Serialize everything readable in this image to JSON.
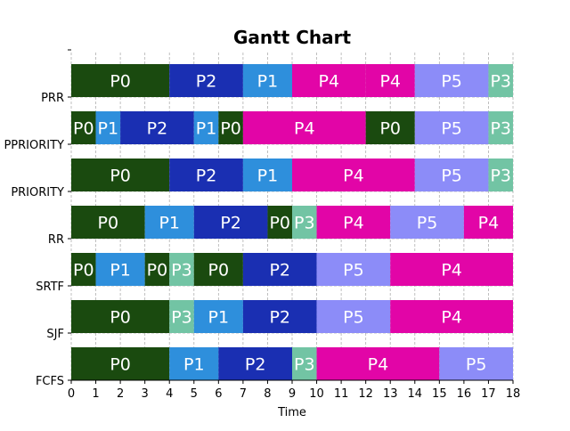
{
  "chart_data": {
    "type": "gantt",
    "title": "Gantt Chart",
    "xlabel": "Time",
    "ylabel": "",
    "xlim": [
      0,
      18
    ],
    "x_ticks": [
      0,
      1,
      2,
      3,
      4,
      5,
      6,
      7,
      8,
      9,
      10,
      11,
      12,
      13,
      14,
      15,
      16,
      17,
      18
    ],
    "grid": true,
    "colors": {
      "P0": "#1a4a0f",
      "P1": "#2e8fdc",
      "P2": "#1a2fb2",
      "P3": "#72c4a4",
      "P4": "#e205a7",
      "P5": "#8c8cf8"
    },
    "rows": [
      {
        "label": "FCFS",
        "segments": [
          {
            "process": "P0",
            "start": 0,
            "end": 4
          },
          {
            "process": "P1",
            "start": 4,
            "end": 6
          },
          {
            "process": "P2",
            "start": 6,
            "end": 9
          },
          {
            "process": "P3",
            "start": 9,
            "end": 10
          },
          {
            "process": "P4",
            "start": 10,
            "end": 15
          },
          {
            "process": "P5",
            "start": 15,
            "end": 18
          }
        ]
      },
      {
        "label": "SJF",
        "segments": [
          {
            "process": "P0",
            "start": 0,
            "end": 4
          },
          {
            "process": "P3",
            "start": 4,
            "end": 5
          },
          {
            "process": "P1",
            "start": 5,
            "end": 7
          },
          {
            "process": "P2",
            "start": 7,
            "end": 10
          },
          {
            "process": "P5",
            "start": 10,
            "end": 13
          },
          {
            "process": "P4",
            "start": 13,
            "end": 18
          }
        ]
      },
      {
        "label": "SRTF",
        "segments": [
          {
            "process": "P0",
            "start": 0,
            "end": 1
          },
          {
            "process": "P1",
            "start": 1,
            "end": 3
          },
          {
            "process": "P0",
            "start": 3,
            "end": 4
          },
          {
            "process": "P3",
            "start": 4,
            "end": 5
          },
          {
            "process": "P0",
            "start": 5,
            "end": 7
          },
          {
            "process": "P2",
            "start": 7,
            "end": 10
          },
          {
            "process": "P5",
            "start": 10,
            "end": 13
          },
          {
            "process": "P4",
            "start": 13,
            "end": 18
          }
        ]
      },
      {
        "label": "RR",
        "segments": [
          {
            "process": "P0",
            "start": 0,
            "end": 3
          },
          {
            "process": "P1",
            "start": 3,
            "end": 5
          },
          {
            "process": "P2",
            "start": 5,
            "end": 8
          },
          {
            "process": "P0",
            "start": 8,
            "end": 9
          },
          {
            "process": "P3",
            "start": 9,
            "end": 10
          },
          {
            "process": "P4",
            "start": 10,
            "end": 13
          },
          {
            "process": "P5",
            "start": 13,
            "end": 16
          },
          {
            "process": "P4",
            "start": 16,
            "end": 18
          }
        ]
      },
      {
        "label": "PRIORITY",
        "segments": [
          {
            "process": "P0",
            "start": 0,
            "end": 4
          },
          {
            "process": "P2",
            "start": 4,
            "end": 7
          },
          {
            "process": "P1",
            "start": 7,
            "end": 9
          },
          {
            "process": "P4",
            "start": 9,
            "end": 14
          },
          {
            "process": "P5",
            "start": 14,
            "end": 17
          },
          {
            "process": "P3",
            "start": 17,
            "end": 18
          }
        ]
      },
      {
        "label": "PPRIORITY",
        "segments": [
          {
            "process": "P0",
            "start": 0,
            "end": 1
          },
          {
            "process": "P1",
            "start": 1,
            "end": 2
          },
          {
            "process": "P2",
            "start": 2,
            "end": 5
          },
          {
            "process": "P1",
            "start": 5,
            "end": 6
          },
          {
            "process": "P0",
            "start": 6,
            "end": 7
          },
          {
            "process": "P4",
            "start": 7,
            "end": 12
          },
          {
            "process": "P0",
            "start": 12,
            "end": 14
          },
          {
            "process": "P5",
            "start": 14,
            "end": 17
          },
          {
            "process": "P3",
            "start": 17,
            "end": 18
          }
        ]
      },
      {
        "label": "PRR",
        "segments": [
          {
            "process": "P0",
            "start": 0,
            "end": 4
          },
          {
            "process": "P2",
            "start": 4,
            "end": 7
          },
          {
            "process": "P1",
            "start": 7,
            "end": 9
          },
          {
            "process": "P4",
            "start": 9,
            "end": 12
          },
          {
            "process": "P4",
            "start": 12,
            "end": 14
          },
          {
            "process": "P5",
            "start": 14,
            "end": 17
          },
          {
            "process": "P3",
            "start": 17,
            "end": 18
          }
        ]
      }
    ]
  }
}
